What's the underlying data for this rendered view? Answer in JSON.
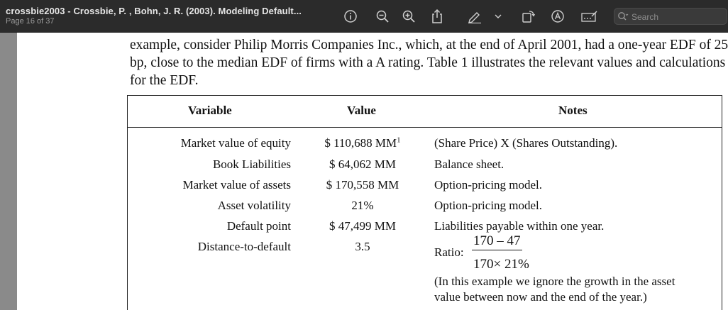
{
  "toolbar": {
    "title": "crossbie2003 - Crossbie, P. , Bohn, J. R. (2003). Modeling Default...",
    "page_indicator": "Page 16 of 37",
    "search_placeholder": "Search",
    "icons": [
      "info-icon",
      "zoom-out-icon",
      "zoom-in-icon",
      "share-icon",
      "markup-pen-icon",
      "chevron-down-icon",
      "rotate-icon",
      "annotate-circle-icon",
      "form-fill-icon",
      "search-icon"
    ]
  },
  "document": {
    "paragraph": "example, consider Philip Morris Companies Inc., which, at the end of April 2001, had a one-year EDF of 25 bp, close to the median EDF of firms with a A rating.  Table 1 illustrates the relevant values and calculations for the EDF.",
    "table": {
      "headers": {
        "variable": "Variable",
        "value": "Value",
        "notes": "Notes"
      },
      "rows": [
        {
          "variable": "Market value of equity",
          "value": "$ 110,688 MM",
          "value_sup": "1",
          "notes": "(Share Price) X (Shares Outstanding)."
        },
        {
          "variable": "Book Liabilities",
          "value": "$ 64,062 MM",
          "notes": "Balance sheet."
        },
        {
          "variable": "Market value of assets",
          "value": "$ 170,558 MM",
          "notes": "Option-pricing model."
        },
        {
          "variable": "Asset volatility",
          "value": "21%",
          "notes": "Option-pricing model."
        },
        {
          "variable": "Default point",
          "value": "$ 47,499 MM",
          "notes": "Liabilities payable within one year."
        },
        {
          "variable": "Distance-to-default",
          "value": "3.5",
          "notes": "Ratio:"
        }
      ],
      "ratio_numerator": "170 – 47",
      "ratio_denominator": "170× 21%",
      "note_line1": "(In this example we ignore the growth in the asset",
      "note_line2": "value between now and the end of the year.)"
    }
  }
}
